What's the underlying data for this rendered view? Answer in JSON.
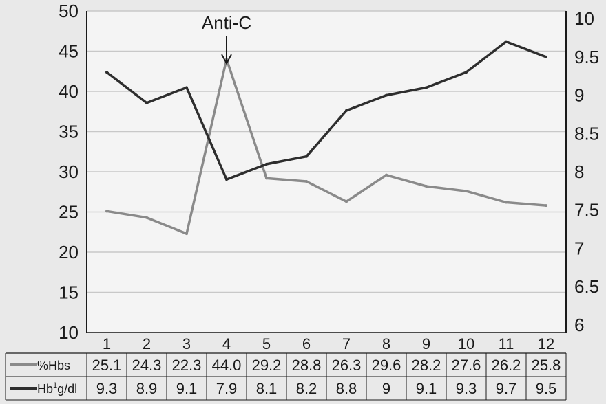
{
  "chart_data": {
    "type": "line",
    "annotation": "Anti-C",
    "annotation_x": "4",
    "categories": [
      "1",
      "2",
      "3",
      "4",
      "5",
      "6",
      "7",
      "8",
      "9",
      "10",
      "11",
      "12"
    ],
    "y_left_ticks": [
      "10",
      "15",
      "20",
      "25",
      "30",
      "35",
      "40",
      "45",
      "50"
    ],
    "y_left_range": [
      10,
      50
    ],
    "y_right_ticks": [
      "6",
      "6.5",
      "7",
      "7.5",
      "8",
      "8.5",
      "9",
      "9.5",
      "10"
    ],
    "y_right_range": [
      5.9,
      10.1
    ],
    "grid": "horizontal",
    "series": [
      {
        "name": "%Hbs",
        "axis": "left",
        "color": "#8a8a8a",
        "values": [
          25.1,
          24.3,
          22.3,
          44.0,
          29.2,
          28.8,
          26.3,
          29.6,
          28.2,
          27.6,
          26.2,
          25.8
        ],
        "table_values": [
          "25.1",
          "24.3",
          "22.3",
          "44.0",
          "29.2",
          "28.8",
          "26.3",
          "29.6",
          "28.2",
          "27.6",
          "26.2",
          "25.8"
        ]
      },
      {
        "name": "Hb",
        "name_sup": "1",
        "name_suffix": "g/dl",
        "axis": "right",
        "color": "#2e2e2e",
        "values": [
          9.3,
          8.9,
          9.1,
          7.9,
          8.1,
          8.2,
          8.8,
          9.0,
          9.1,
          9.3,
          9.7,
          9.5
        ],
        "table_values": [
          "9.3",
          "8.9",
          "9.1",
          "7.9",
          "8.1",
          "8.2",
          "8.8",
          "9",
          "9.1",
          "9.3",
          "9.7",
          "9.5"
        ]
      }
    ]
  }
}
